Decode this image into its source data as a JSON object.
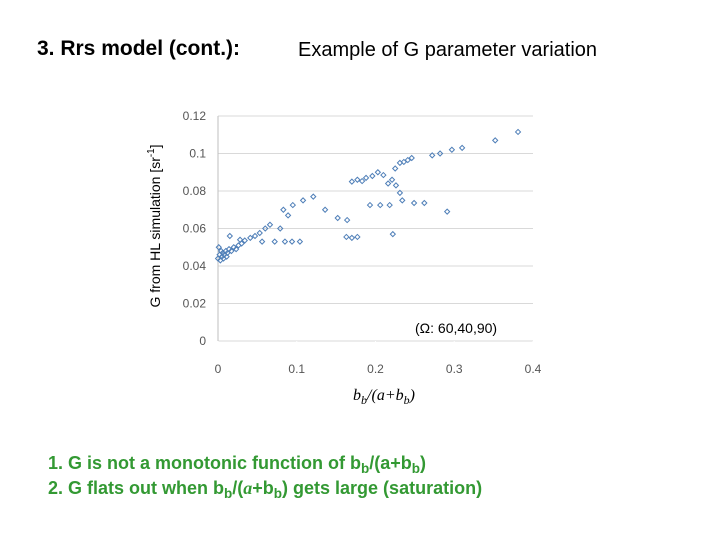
{
  "chart_data": {
    "type": "scatter",
    "title": "3. Rrs model (cont.):",
    "subtitle": "Example of G parameter variation",
    "y_label": [
      {
        "text": "G from HL simulation  [sr"
      },
      {
        "text": "-1",
        "style": "sup"
      },
      {
        "text": "]"
      }
    ],
    "x_label": [
      {
        "text": "b"
      },
      {
        "text": "b",
        "style": "sub"
      },
      {
        "text": "/(a+b"
      },
      {
        "text": "b",
        "style": "sub"
      },
      {
        "text": ")"
      }
    ],
    "annotation": "(Ω: 60,40,90)",
    "xlim": [
      0,
      0.4
    ],
    "xticks": [
      0,
      0.1,
      0.2,
      0.3,
      0.4
    ],
    "ylim": [
      0,
      0.12
    ],
    "yticks": [
      0,
      0.02,
      0.04,
      0.06,
      0.08,
      0.1,
      0.12
    ],
    "grid": true,
    "series": [
      {
        "color": "#4f7fb8",
        "x": [
          0.0,
          0.002,
          0.003,
          0.004,
          0.005,
          0.006,
          0.008,
          0.01,
          0.012,
          0.014,
          0.017,
          0.02,
          0.023,
          0.026,
          0.03,
          0.001,
          0.007,
          0.011,
          0.034,
          0.041,
          0.047,
          0.053,
          0.06,
          0.066,
          0.056,
          0.072,
          0.085,
          0.094,
          0.104,
          0.079,
          0.089,
          0.095,
          0.108,
          0.121,
          0.136,
          0.152,
          0.163,
          0.17,
          0.177,
          0.164,
          0.17,
          0.177,
          0.183,
          0.188,
          0.196,
          0.203,
          0.21,
          0.216,
          0.221,
          0.226,
          0.231,
          0.236,
          0.241,
          0.246,
          0.225,
          0.231,
          0.234,
          0.222,
          0.193,
          0.206,
          0.218,
          0.249,
          0.262,
          0.291,
          0.272,
          0.282,
          0.297,
          0.31,
          0.352,
          0.381,
          0.015,
          0.028,
          0.083
        ],
        "values": [
          0.044,
          0.046,
          0.043,
          0.048,
          0.045,
          0.047,
          0.046,
          0.048,
          0.047,
          0.049,
          0.048,
          0.05,
          0.049,
          0.051,
          0.052,
          0.05,
          0.044,
          0.045,
          0.0536,
          0.055,
          0.056,
          0.0576,
          0.06,
          0.062,
          0.053,
          0.053,
          0.053,
          0.053,
          0.053,
          0.06,
          0.067,
          0.0725,
          0.075,
          0.077,
          0.07,
          0.0656,
          0.0555,
          0.055,
          0.0555,
          0.0645,
          0.085,
          0.086,
          0.0853,
          0.087,
          0.088,
          0.09,
          0.0885,
          0.084,
          0.086,
          0.083,
          0.095,
          0.0955,
          0.0965,
          0.0976,
          0.092,
          0.079,
          0.075,
          0.057,
          0.0725,
          0.0725,
          0.0725,
          0.0736,
          0.0736,
          0.069,
          0.099,
          0.1,
          0.102,
          0.103,
          0.107,
          0.1115,
          0.056,
          0.054,
          0.07
        ]
      }
    ],
    "notes": [
      [
        {
          "text": "1. G is not a monotonic function of b"
        },
        {
          "text": "b",
          "style": "sub"
        },
        {
          "text": "/(a+b"
        },
        {
          "text": "b",
          "style": "sub"
        },
        {
          "text": ")"
        }
      ],
      [
        {
          "text": "2. G flats out when b"
        },
        {
          "text": "b",
          "style": "sub"
        },
        {
          "text": "/("
        },
        {
          "text": "a",
          "style": "italic"
        },
        {
          "text": "+b"
        },
        {
          "text": "b",
          "style": "sub"
        },
        {
          "text": ") gets large (saturation)"
        }
      ]
    ]
  }
}
